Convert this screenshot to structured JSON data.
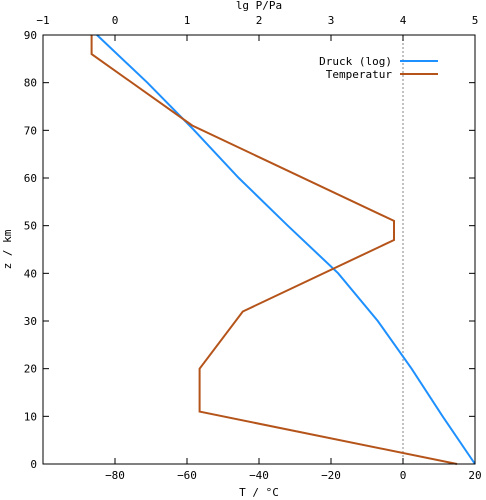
{
  "chart_data": {
    "type": "line",
    "xlabel": "T / °C",
    "ylabel": "z / km",
    "x2label": "lg P/Pa",
    "xlim": [
      -100,
      20
    ],
    "ylim": [
      0,
      90
    ],
    "x2lim": [
      -1,
      5
    ],
    "x_ticks": [
      -80,
      -60,
      -40,
      -20,
      0,
      20
    ],
    "y_ticks": [
      0,
      10,
      20,
      30,
      40,
      50,
      60,
      70,
      80,
      90
    ],
    "x2_ticks": [
      -1,
      0,
      1,
      2,
      3,
      4,
      5
    ],
    "reference_line": {
      "axis": "x",
      "value": 0,
      "style": "dotted",
      "color": "#999999"
    },
    "legend_position": "top-right",
    "series": [
      {
        "name": "Druck (log)",
        "axis": "x2",
        "color": "#1e90ff",
        "points": [
          [
            5.0,
            0
          ],
          [
            4.55,
            10
          ],
          [
            4.12,
            20
          ],
          [
            3.65,
            30
          ],
          [
            3.1,
            40
          ],
          [
            2.4,
            50
          ],
          [
            1.72,
            60
          ],
          [
            1.1,
            70
          ],
          [
            0.45,
            80
          ],
          [
            -0.25,
            90
          ]
        ]
      },
      {
        "name": "Temperatur",
        "axis": "x",
        "color": "#b5541a",
        "points": [
          [
            15,
            0
          ],
          [
            -56.5,
            11
          ],
          [
            -56.5,
            20
          ],
          [
            -44.5,
            32
          ],
          [
            -2.5,
            47
          ],
          [
            -2.5,
            51
          ],
          [
            -58.5,
            71
          ],
          [
            -86.5,
            86
          ],
          [
            -86.5,
            90
          ]
        ]
      }
    ]
  }
}
